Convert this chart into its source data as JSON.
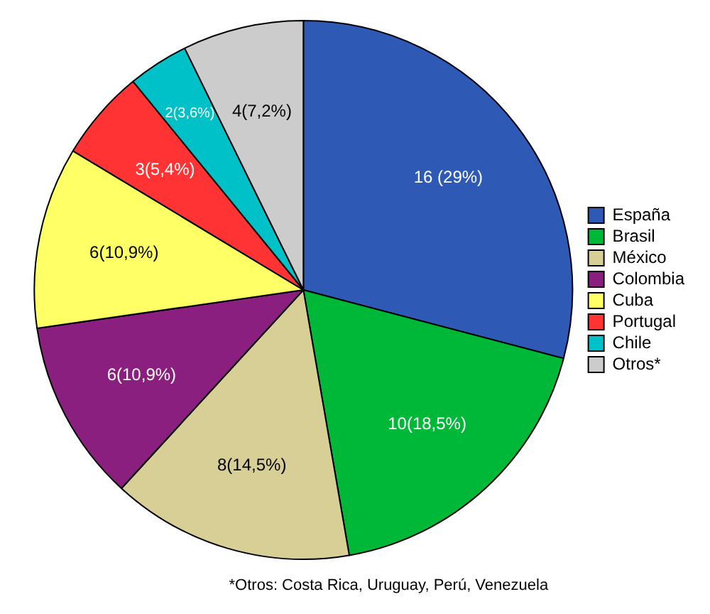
{
  "chart_data": {
    "type": "pie",
    "categories": [
      "España",
      "Brasil",
      "México",
      "Colombia",
      "Cuba",
      "Portugal",
      "Chile",
      "Otros*"
    ],
    "values": [
      16,
      10,
      8,
      6,
      6,
      3,
      2,
      4
    ],
    "value_labels": [
      "16 (29%)",
      "10(18,5%)",
      "8(14,5%)",
      "6(10,9%)",
      "6(10,9%)",
      "3(5,4%)",
      "2(3,6%)",
      "4(7,2%)"
    ],
    "colors": [
      "#2e59b5",
      "#00b838",
      "#d8cf97",
      "#8b1f7f",
      "#ffff66",
      "#ff3333",
      "#00c0c8",
      "#cccccc"
    ],
    "legend": "right",
    "annotations": [
      "*Otros: Costa Rica, Uruguay, Perú, Venezuela"
    ]
  }
}
